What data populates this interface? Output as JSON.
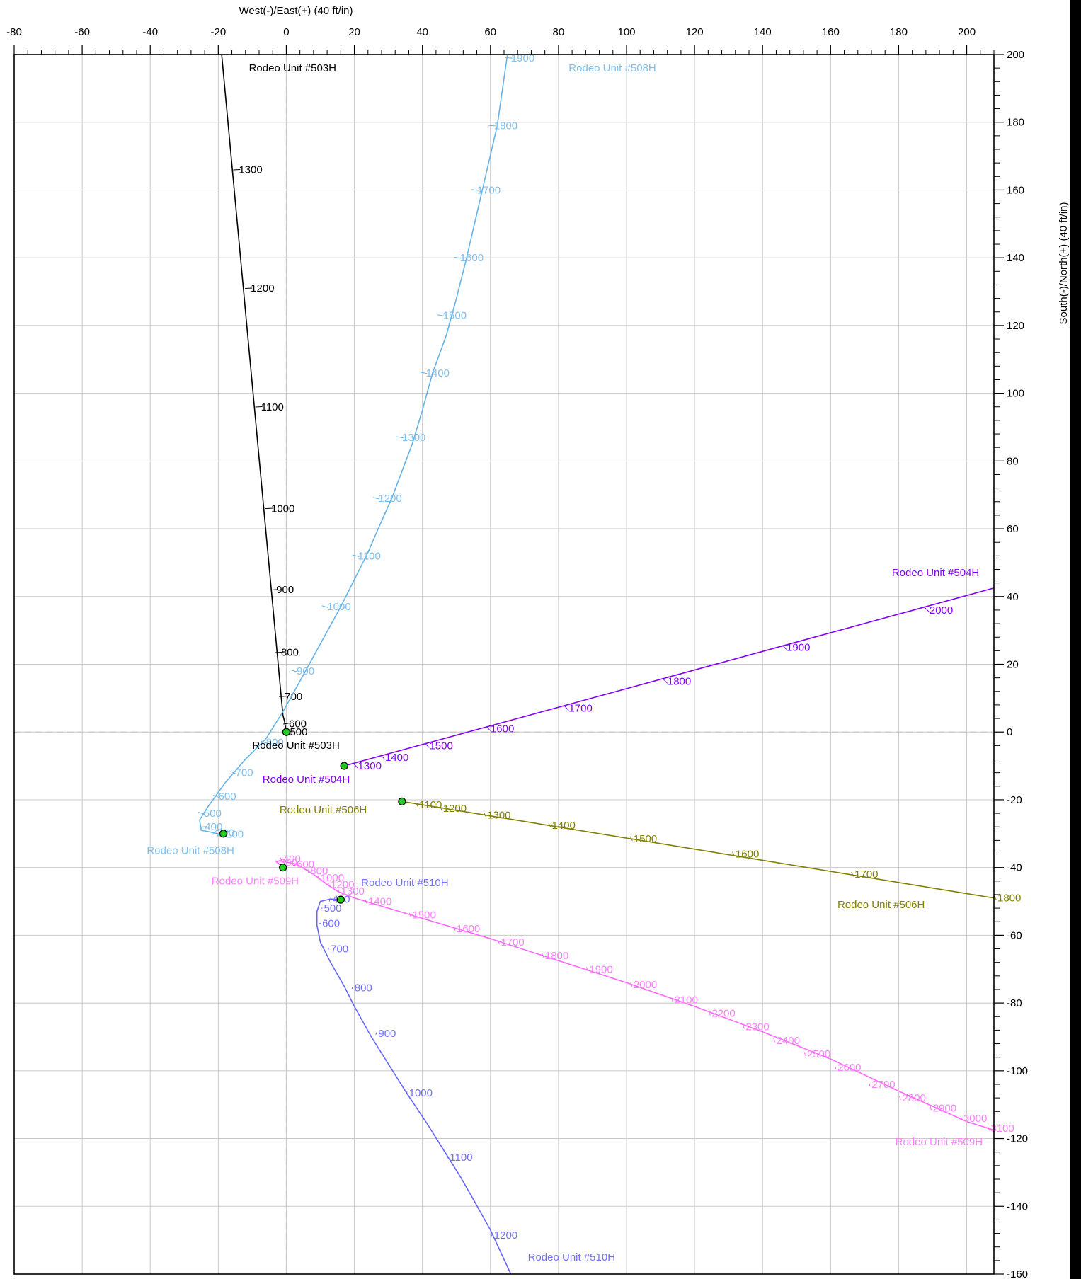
{
  "chart_data": {
    "type": "line",
    "xlabel": "West(-)/East(+) (40 ft/in)",
    "ylabel": "South(-)/North(+) (40 ft/in)",
    "xlim": [
      -80,
      208
    ],
    "ylim": [
      -160,
      200
    ],
    "x_ticks": [
      -80,
      -60,
      -40,
      -20,
      0,
      20,
      40,
      60,
      80,
      100,
      120,
      140,
      160,
      180,
      200
    ],
    "y_ticks": [
      200,
      180,
      160,
      140,
      120,
      100,
      80,
      60,
      40,
      20,
      0,
      -20,
      -40,
      -60,
      -80,
      -100,
      -120,
      -140,
      -160
    ],
    "grid": true,
    "origin_lines": true,
    "series": [
      {
        "name": "Rodeo Unit #503H",
        "color": "#000000",
        "label_color": "#000000",
        "path": [
          [
            0,
            0
          ],
          [
            -0.5,
            3
          ],
          [
            -1,
            5
          ],
          [
            -19,
            200
          ]
        ],
        "md_marks": [
          {
            "md": "500",
            "x": 0,
            "y": 0
          },
          {
            "md": "600",
            "x": -0.3,
            "y": 2.5
          },
          {
            "md": "700",
            "x": -1.5,
            "y": 10.5
          },
          {
            "md": "800",
            "x": -2.6,
            "y": 23.5
          },
          {
            "md": "900",
            "x": -4,
            "y": 42
          },
          {
            "md": "1000",
            "x": -5.5,
            "y": 66
          },
          {
            "md": "1100",
            "x": -8.5,
            "y": 96
          },
          {
            "md": "1200",
            "x": -11.5,
            "y": 131
          },
          {
            "md": "1300",
            "x": -15,
            "y": 166
          }
        ],
        "surface": {
          "x": 0,
          "y": 0
        },
        "labels": [
          {
            "text": "Rodeo Unit #503H",
            "x": -10,
            "y": -5
          },
          {
            "text": "Rodeo Unit #503H",
            "x": -11,
            "y": 195
          }
        ]
      },
      {
        "name": "Rodeo Unit #504H",
        "color": "#8000ff",
        "label_color": "#8000ff",
        "path": [
          [
            17,
            -10
          ],
          [
            208,
            42.5
          ]
        ],
        "md_marks": [
          {
            "md": "1300",
            "x": 20,
            "y": -10
          },
          {
            "md": "1400",
            "x": 28,
            "y": -7.5
          },
          {
            "md": "1500",
            "x": 41,
            "y": -4
          },
          {
            "md": "1600",
            "x": 59,
            "y": 1
          },
          {
            "md": "1700",
            "x": 82,
            "y": 7
          },
          {
            "md": "1800",
            "x": 111,
            "y": 15
          },
          {
            "md": "1900",
            "x": 146,
            "y": 25
          },
          {
            "md": "2000",
            "x": 188,
            "y": 36
          }
        ],
        "surface": {
          "x": 17,
          "y": -10
        },
        "labels": [
          {
            "text": "Rodeo Unit #504H",
            "x": -7,
            "y": -15
          },
          {
            "text": "Rodeo Unit #504H",
            "x": 178,
            "y": 46
          }
        ]
      },
      {
        "name": "Rodeo Unit #506H",
        "color": "#808000",
        "label_color": "#808000",
        "path": [
          [
            34,
            -20.5
          ],
          [
            208,
            -49
          ]
        ],
        "md_marks": [
          {
            "md": "1100",
            "x": 38,
            "y": -21.5
          },
          {
            "md": "1200",
            "x": 45,
            "y": -22.5
          },
          {
            "md": "1300",
            "x": 58,
            "y": -24.5
          },
          {
            "md": "1400",
            "x": 77,
            "y": -27.5
          },
          {
            "md": "1500",
            "x": 101,
            "y": -31.5
          },
          {
            "md": "1600",
            "x": 131,
            "y": -36
          },
          {
            "md": "1700",
            "x": 166,
            "y": -42
          },
          {
            "md": "1800",
            "x": 208,
            "y": -49
          }
        ],
        "surface": {
          "x": 34,
          "y": -20.5
        },
        "labels": [
          {
            "text": "Rodeo Unit #506H",
            "x": -2,
            "y": -24
          },
          {
            "text": "Rodeo Unit #506H",
            "x": 162,
            "y": -52
          }
        ]
      },
      {
        "name": "Rodeo Unit #508H",
        "color": "#66b3e8",
        "label_color": "#80c0f0",
        "path": [
          [
            -18.5,
            -30
          ],
          [
            -19,
            -30.3
          ],
          [
            -21.5,
            -29.7
          ],
          [
            -25,
            -29
          ],
          [
            -25.5,
            -26
          ],
          [
            -23,
            -22
          ],
          [
            -18,
            -15
          ],
          [
            -12,
            -8
          ],
          [
            -6,
            -2
          ],
          [
            -1,
            6
          ],
          [
            4,
            15
          ],
          [
            10,
            26
          ],
          [
            16,
            37
          ],
          [
            20,
            45
          ],
          [
            24,
            53
          ],
          [
            27,
            60
          ],
          [
            31,
            69
          ],
          [
            34,
            77
          ],
          [
            37,
            85
          ],
          [
            40,
            95
          ],
          [
            43,
            106
          ],
          [
            47,
            117
          ],
          [
            50,
            128
          ],
          [
            53,
            140
          ],
          [
            56,
            153
          ],
          [
            59,
            166
          ],
          [
            62,
            179
          ],
          [
            65,
            200
          ]
        ],
        "md_marks": [
          {
            "md": "100",
            "x": -18.8,
            "y": -30.1
          },
          {
            "md": "200",
            "x": -21.5,
            "y": -29.7
          },
          {
            "md": "400",
            "x": -25,
            "y": -28
          },
          {
            "md": "500",
            "x": -25.3,
            "y": -24
          },
          {
            "md": "600",
            "x": -21,
            "y": -19
          },
          {
            "md": "700",
            "x": -16,
            "y": -12
          },
          {
            "md": "800",
            "x": -7,
            "y": -3
          },
          {
            "md": "900",
            "x": 2,
            "y": 18
          },
          {
            "md": "1000",
            "x": 11,
            "y": 37
          },
          {
            "md": "1100",
            "x": 20,
            "y": 52
          },
          {
            "md": "1200",
            "x": 26,
            "y": 69
          },
          {
            "md": "1300",
            "x": 33,
            "y": 87
          },
          {
            "md": "1400",
            "x": 40,
            "y": 106
          },
          {
            "md": "1500",
            "x": 45,
            "y": 123
          },
          {
            "md": "1600",
            "x": 50,
            "y": 140
          },
          {
            "md": "1700",
            "x": 55,
            "y": 160
          },
          {
            "md": "1800",
            "x": 60,
            "y": 179
          },
          {
            "md": "1900",
            "x": 65,
            "y": 199
          }
        ],
        "surface": {
          "x": -18.5,
          "y": -30
        },
        "labels": [
          {
            "text": "Rodeo Unit #508H",
            "x": -41,
            "y": -36
          },
          {
            "text": "Rodeo Unit #508H",
            "x": 83,
            "y": 195
          }
        ]
      },
      {
        "name": "Rodeo Unit #509H",
        "color": "#ff66ff",
        "label_color": "#ff80ff",
        "path": [
          [
            -1,
            -40
          ],
          [
            -3,
            -38.2
          ],
          [
            -2,
            -38
          ],
          [
            3,
            -39
          ],
          [
            8,
            -42
          ],
          [
            12,
            -45
          ],
          [
            15,
            -47
          ],
          [
            20,
            -49
          ],
          [
            40,
            -55
          ],
          [
            60,
            -61
          ],
          [
            80,
            -67.5
          ],
          [
            100,
            -74
          ],
          [
            120,
            -81
          ],
          [
            140,
            -88.5
          ],
          [
            160,
            -96.5
          ],
          [
            180,
            -106
          ],
          [
            200,
            -115
          ],
          [
            208,
            -117.5
          ]
        ],
        "md_marks": [
          {
            "md": "300",
            "x": -3,
            "y": -38.5
          },
          {
            "md": "400",
            "x": -2,
            "y": -37.5
          },
          {
            "md": "600",
            "x": 2,
            "y": -39
          },
          {
            "md": "800",
            "x": 6,
            "y": -41
          },
          {
            "md": "1000",
            "x": 9,
            "y": -43
          },
          {
            "md": "1200",
            "x": 12,
            "y": -45
          },
          {
            "md": "1300",
            "x": 15,
            "y": -47
          },
          {
            "md": "1400",
            "x": 23,
            "y": -50
          },
          {
            "md": "1500",
            "x": 36,
            "y": -54
          },
          {
            "md": "1600",
            "x": 49,
            "y": -58
          },
          {
            "md": "1700",
            "x": 62,
            "y": -62
          },
          {
            "md": "1800",
            "x": 75,
            "y": -66
          },
          {
            "md": "1900",
            "x": 88,
            "y": -70
          },
          {
            "md": "2000",
            "x": 101,
            "y": -74.5
          },
          {
            "md": "2100",
            "x": 113,
            "y": -79
          },
          {
            "md": "2200",
            "x": 124,
            "y": -83
          },
          {
            "md": "2300",
            "x": 134,
            "y": -87
          },
          {
            "md": "2400",
            "x": 143,
            "y": -91
          },
          {
            "md": "2500",
            "x": 152,
            "y": -95
          },
          {
            "md": "2600",
            "x": 161,
            "y": -99
          },
          {
            "md": "2700",
            "x": 171,
            "y": -104
          },
          {
            "md": "2800",
            "x": 180,
            "y": -108
          },
          {
            "md": "2900",
            "x": 189,
            "y": -111
          },
          {
            "md": "3000",
            "x": 198,
            "y": -114
          },
          {
            "md": "3100",
            "x": 206,
            "y": -117
          }
        ],
        "surface": {
          "x": -1,
          "y": -40
        },
        "labels": [
          {
            "text": "Rodeo Unit #509H",
            "x": -22,
            "y": -45
          },
          {
            "text": "Rodeo Unit #509H",
            "x": 179,
            "y": -122
          }
        ]
      },
      {
        "name": "Rodeo Unit #510H",
        "color": "#6666ff",
        "label_color": "#7070ff",
        "path": [
          [
            16,
            -49.5
          ],
          [
            13,
            -49.3
          ],
          [
            10,
            -50
          ],
          [
            9,
            -53
          ],
          [
            9,
            -57
          ],
          [
            10,
            -62
          ],
          [
            13,
            -68
          ],
          [
            17,
            -75
          ],
          [
            20,
            -81
          ],
          [
            25,
            -90
          ],
          [
            30,
            -98
          ],
          [
            35,
            -106
          ],
          [
            41,
            -115
          ],
          [
            46,
            -123
          ],
          [
            51,
            -131
          ],
          [
            55,
            -138
          ],
          [
            60,
            -147
          ],
          [
            66,
            -160
          ]
        ],
        "md_marks": [
          {
            "md": "400",
            "x": 12.5,
            "y": -49.4
          },
          {
            "md": "500",
            "x": 10,
            "y": -52
          },
          {
            "md": "600",
            "x": 9.5,
            "y": -56.5
          },
          {
            "md": "700",
            "x": 12,
            "y": -64
          },
          {
            "md": "800",
            "x": 19,
            "y": -75.5
          },
          {
            "md": "900",
            "x": 26,
            "y": -89
          },
          {
            "md": "1000",
            "x": 35,
            "y": -106.5
          },
          {
            "md": "1100",
            "x": 47,
            "y": -125.5
          },
          {
            "md": "1200",
            "x": 60,
            "y": -148.5
          }
        ],
        "surface": {
          "x": 16,
          "y": -49.5
        },
        "labels": [
          {
            "text": "Rodeo Unit #510H",
            "x": 22,
            "y": -45.5
          },
          {
            "text": "Rodeo Unit #510H",
            "x": 71,
            "y": -156
          }
        ]
      }
    ]
  }
}
